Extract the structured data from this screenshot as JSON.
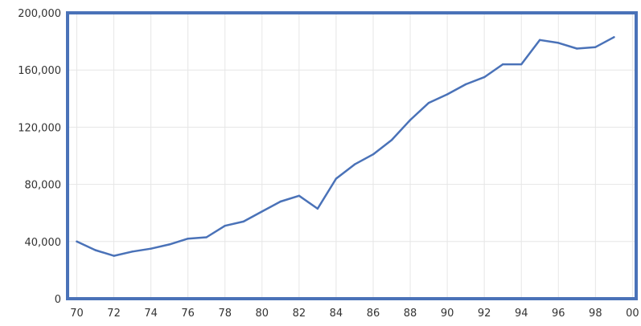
{
  "chart_data": {
    "type": "line",
    "title": "",
    "xlabel": "",
    "ylabel": "",
    "grid": true,
    "xlim": [
      1970,
      2000
    ],
    "ylim": [
      0,
      200000
    ],
    "x_ticks": [
      1970,
      1972,
      1974,
      1976,
      1978,
      1980,
      1982,
      1984,
      1986,
      1988,
      1990,
      1992,
      1994,
      1996,
      1998,
      2000
    ],
    "x_tick_labels": [
      "70",
      "72",
      "74",
      "76",
      "78",
      "80",
      "82",
      "84",
      "86",
      "88",
      "90",
      "92",
      "94",
      "96",
      "98",
      "00"
    ],
    "y_ticks": [
      0,
      40000,
      80000,
      120000,
      160000,
      200000
    ],
    "y_tick_labels": [
      "0",
      "40,000",
      "80,000",
      "120,000",
      "160,000",
      "200,000"
    ],
    "series": [
      {
        "color": "#4a72b8",
        "x": [
          1970,
          1971,
          1972,
          1973,
          1974,
          1975,
          1976,
          1977,
          1978,
          1979,
          1980,
          1981,
          1982,
          1983,
          1984,
          1985,
          1986,
          1987,
          1988,
          1989,
          1990,
          1991,
          1992,
          1993,
          1994,
          1995,
          1996,
          1997,
          1998,
          1999
        ],
        "y": [
          40000,
          34000,
          30000,
          33000,
          35000,
          38000,
          42000,
          43000,
          51000,
          54000,
          61000,
          68000,
          72000,
          63000,
          84000,
          94000,
          101000,
          111000,
          125000,
          137000,
          143000,
          150000,
          155000,
          164000,
          164000,
          181000,
          179000,
          175000,
          176000,
          183000
        ]
      }
    ]
  }
}
